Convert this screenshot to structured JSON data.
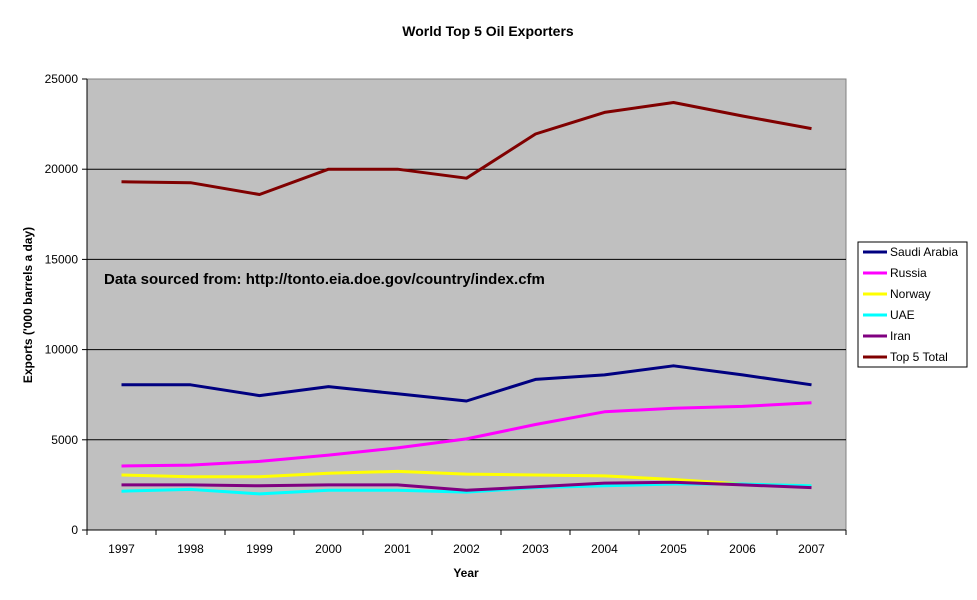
{
  "chart_data": {
    "type": "line",
    "title": "World Top 5 Oil Exporters",
    "xlabel": "Year",
    "ylabel": "Exports ('000 barrels a day)",
    "annotation": "Data sourced from: http://tonto.eia.doe.gov/country/index.cfm",
    "categories": [
      "1997",
      "1998",
      "1999",
      "2000",
      "2001",
      "2002",
      "2003",
      "2004",
      "2005",
      "2006",
      "2007"
    ],
    "yticks": [
      "0",
      "5000",
      "10000",
      "15000",
      "20000",
      "25000"
    ],
    "ylim": [
      0,
      25000
    ],
    "grid": true,
    "legend_position": "right",
    "series": [
      {
        "name": "Saudi Arabia",
        "color": "#000080",
        "values": [
          8050,
          8050,
          7450,
          7950,
          7550,
          7150,
          8350,
          8600,
          9100,
          8600,
          8050
        ]
      },
      {
        "name": "Russia",
        "color": "#ff00ff",
        "values": [
          3550,
          3600,
          3800,
          4150,
          4550,
          5050,
          5850,
          6550,
          6750,
          6850,
          7050
        ]
      },
      {
        "name": "Norway",
        "color": "#ffff00",
        "values": [
          3050,
          2950,
          2950,
          3150,
          3250,
          3100,
          3050,
          3000,
          2800,
          2550,
          2450
        ]
      },
      {
        "name": "UAE",
        "color": "#00ffff",
        "values": [
          2150,
          2250,
          2000,
          2200,
          2200,
          2100,
          2350,
          2450,
          2550,
          2550,
          2450
        ]
      },
      {
        "name": "Iran",
        "color": "#800080",
        "values": [
          2500,
          2500,
          2450,
          2500,
          2500,
          2200,
          2400,
          2600,
          2650,
          2500,
          2350
        ]
      },
      {
        "name": "Top 5 Total",
        "color": "#800000",
        "values": [
          19300,
          19250,
          18600,
          20000,
          20000,
          19500,
          21950,
          23150,
          23700,
          22950,
          22250
        ]
      }
    ]
  }
}
